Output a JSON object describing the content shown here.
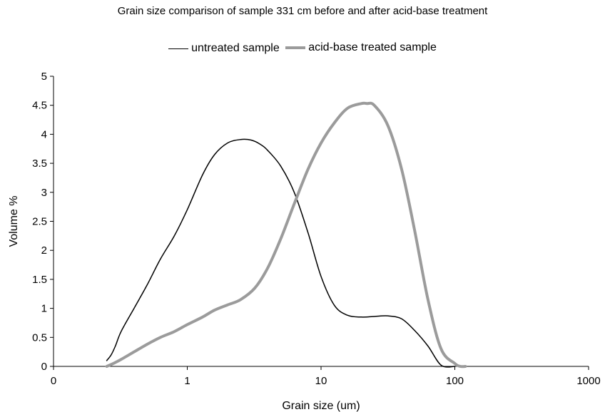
{
  "chart_data": {
    "type": "line",
    "title": "Grain size comparison of sample 331 cm before and after acid-base treatment",
    "xlabel": "Grain size (um)",
    "ylabel": "Volume %",
    "xscale": "log",
    "xlim": [
      0.1,
      1000
    ],
    "ylim": [
      0,
      5
    ],
    "xticks": [
      0.1,
      1,
      10,
      100,
      1000
    ],
    "xtick_labels": [
      "0",
      "1",
      "10",
      "100",
      "1000"
    ],
    "yticks": [
      0,
      0.5,
      1,
      1.5,
      2,
      2.5,
      3,
      3.5,
      4,
      4.5,
      5
    ],
    "ytick_labels": [
      "0",
      "0.5",
      "1",
      "1.5",
      "2",
      "2.5",
      "3",
      "3.5",
      "4",
      "4.5",
      "5"
    ],
    "grid": false,
    "legend_position": "top",
    "series": [
      {
        "name": "untreated sample",
        "color": "#000000",
        "x": [
          0.25,
          0.27,
          0.29,
          0.32,
          0.4,
          0.5,
          0.63,
          0.8,
          1.0,
          1.3,
          1.6,
          2.0,
          2.5,
          3.0,
          3.5,
          4.0,
          5.0,
          6.3,
          8.0,
          10,
          12.6,
          15.8,
          20,
          25,
          31.6,
          40,
          50,
          63,
          79,
          100
        ],
        "y": [
          0.1,
          0.2,
          0.35,
          0.6,
          1.0,
          1.4,
          1.85,
          2.25,
          2.7,
          3.3,
          3.65,
          3.85,
          3.91,
          3.9,
          3.83,
          3.72,
          3.45,
          3.0,
          2.3,
          1.55,
          1.05,
          0.88,
          0.85,
          0.86,
          0.87,
          0.82,
          0.62,
          0.35,
          0.02,
          0.0
        ]
      },
      {
        "name": "acid-base treated sample",
        "color": "#9b9b9b",
        "x": [
          0.25,
          0.28,
          0.32,
          0.4,
          0.5,
          0.63,
          0.8,
          1.0,
          1.3,
          1.6,
          2.0,
          2.5,
          3.2,
          4.0,
          5.0,
          6.3,
          8.0,
          10,
          12.6,
          15.8,
          20,
          22,
          25,
          31.6,
          40,
          50,
          63,
          79,
          100,
          110,
          120
        ],
        "y": [
          0.0,
          0.05,
          0.12,
          0.25,
          0.38,
          0.5,
          0.6,
          0.72,
          0.85,
          0.97,
          1.06,
          1.15,
          1.35,
          1.7,
          2.2,
          2.8,
          3.4,
          3.85,
          4.2,
          4.45,
          4.53,
          4.53,
          4.5,
          4.15,
          3.4,
          2.35,
          1.15,
          0.3,
          0.05,
          0.0,
          0.0
        ]
      }
    ]
  }
}
